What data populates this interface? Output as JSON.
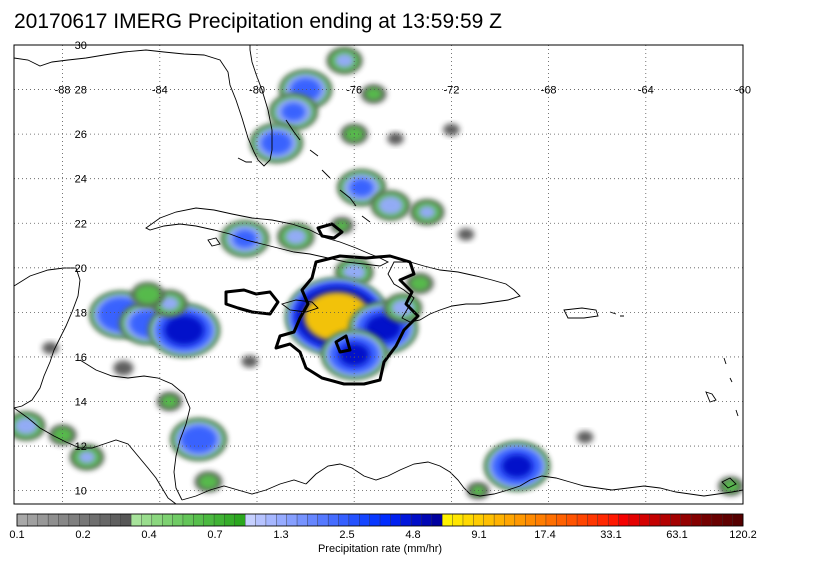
{
  "title": "20170617 IMERG Precipitation ending at 13:59:59 Z",
  "map": {
    "lon_range": [
      -90,
      -60
    ],
    "lat_range": [
      9.4,
      30
    ],
    "lon_ticks": [
      {
        "value": -88,
        "label": "-88"
      },
      {
        "value": -84,
        "label": "-84"
      },
      {
        "value": -80,
        "label": "-80"
      },
      {
        "value": -76,
        "label": "-76"
      },
      {
        "value": -72,
        "label": "-72"
      },
      {
        "value": -68,
        "label": "-68"
      },
      {
        "value": -64,
        "label": "-64"
      },
      {
        "value": -60,
        "label": "-60"
      }
    ],
    "lat_ticks": [
      {
        "value": 30,
        "label": "30"
      },
      {
        "value": 28,
        "label": "28"
      },
      {
        "value": 26,
        "label": "26"
      },
      {
        "value": 24,
        "label": "24"
      },
      {
        "value": 22,
        "label": "22"
      },
      {
        "value": 20,
        "label": "20"
      },
      {
        "value": 18,
        "label": "18"
      },
      {
        "value": 16,
        "label": "16"
      },
      {
        "value": 14,
        "label": "14"
      },
      {
        "value": 12,
        "label": "12"
      },
      {
        "value": 10,
        "label": "10"
      }
    ],
    "colors": {
      "coast": "#000000",
      "grid": "#555555",
      "contour": "#000000"
    },
    "precip_cells": [
      {
        "lon": -78.0,
        "lat": 28.0,
        "rate": 3.0
      },
      {
        "lon": -78.5,
        "lat": 27.0,
        "rate": 2.5
      },
      {
        "lon": -79.2,
        "lat": 25.6,
        "rate": 3.0
      },
      {
        "lon": -76.4,
        "lat": 29.3,
        "rate": 1.3
      },
      {
        "lon": -75.2,
        "lat": 27.8,
        "rate": 0.7
      },
      {
        "lon": -76.0,
        "lat": 26.0,
        "rate": 0.8
      },
      {
        "lon": -75.7,
        "lat": 23.6,
        "rate": 2.5
      },
      {
        "lon": -74.5,
        "lat": 22.8,
        "rate": 1.6
      },
      {
        "lon": -73.0,
        "lat": 22.5,
        "rate": 1.2
      },
      {
        "lon": -80.5,
        "lat": 21.3,
        "rate": 2.5
      },
      {
        "lon": -78.4,
        "lat": 21.4,
        "rate": 1.4
      },
      {
        "lon": -76.5,
        "lat": 21.9,
        "rate": 0.6
      },
      {
        "lon": -85.6,
        "lat": 17.9,
        "rate": 4.5
      },
      {
        "lon": -84.5,
        "lat": 17.5,
        "rate": 3.5
      },
      {
        "lon": -83.0,
        "lat": 17.2,
        "rate": 6.0
      },
      {
        "lon": -83.6,
        "lat": 18.4,
        "rate": 1.3
      },
      {
        "lon": -84.5,
        "lat": 18.8,
        "rate": 1.1
      },
      {
        "lon": -76.0,
        "lat": 19.8,
        "rate": 1.5
      },
      {
        "lon": -76.7,
        "lat": 17.8,
        "rate": 14.0
      },
      {
        "lon": -74.8,
        "lat": 17.3,
        "rate": 5.5
      },
      {
        "lon": -76.0,
        "lat": 16.1,
        "rate": 5.0
      },
      {
        "lon": -74.0,
        "lat": 18.2,
        "rate": 1.5
      },
      {
        "lon": -73.3,
        "lat": 19.3,
        "rate": 0.8
      },
      {
        "lon": -89.5,
        "lat": 12.9,
        "rate": 1.5
      },
      {
        "lon": -87.0,
        "lat": 11.5,
        "rate": 1.2
      },
      {
        "lon": -88.0,
        "lat": 12.5,
        "rate": 0.8
      },
      {
        "lon": -82.4,
        "lat": 12.3,
        "rate": 3.5
      },
      {
        "lon": -83.6,
        "lat": 14.0,
        "rate": 0.7
      },
      {
        "lon": -85.5,
        "lat": 15.5,
        "rate": 0.5
      },
      {
        "lon": -82.0,
        "lat": 10.4,
        "rate": 0.8
      },
      {
        "lon": -69.3,
        "lat": 11.1,
        "rate": 5.0
      },
      {
        "lon": -70.9,
        "lat": 10.0,
        "rate": 0.6
      },
      {
        "lon": -60.5,
        "lat": 10.2,
        "rate": 0.7
      },
      {
        "lon": -66.5,
        "lat": 12.4,
        "rate": 0.4
      },
      {
        "lon": -80.3,
        "lat": 15.8,
        "rate": 0.4
      },
      {
        "lon": -74.3,
        "lat": 25.8,
        "rate": 0.4
      },
      {
        "lon": -71.4,
        "lat": 21.5,
        "rate": 0.4
      },
      {
        "lon": -72.0,
        "lat": 26.2,
        "rate": 0.4
      },
      {
        "lon": -88.5,
        "lat": 16.4,
        "rate": 0.4
      }
    ]
  },
  "colorbar": {
    "title": "Precipitation rate (mm/hr)",
    "colors": [
      "#a8a8a8",
      "#a0a0a0",
      "#989898",
      "#8f8f8f",
      "#878787",
      "#7f7f7f",
      "#777777",
      "#6f6f6f",
      "#676767",
      "#5f5f5f",
      "#575757",
      "#a7e39b",
      "#99dd8d",
      "#8bd77f",
      "#7dd171",
      "#70cb65",
      "#63c558",
      "#57bf4c",
      "#4bb940",
      "#40b334",
      "#35ad29",
      "#2ba71f",
      "#c6d0ff",
      "#b6c3ff",
      "#a6b7ff",
      "#96abff",
      "#869fff",
      "#7693ff",
      "#6686ff",
      "#5579ff",
      "#456cff",
      "#355fff",
      "#2552ff",
      "#1545ff",
      "#0838ff",
      "#002cff",
      "#0020f0",
      "#0016dc",
      "#000dc8",
      "#0006b4",
      "#0000a0",
      "#fff200",
      "#ffe600",
      "#ffd900",
      "#ffcc00",
      "#ffbf00",
      "#ffb200",
      "#ffa500",
      "#ff9800",
      "#ff8a00",
      "#ff7d00",
      "#ff6f00",
      "#ff6100",
      "#ff5300",
      "#ff4500",
      "#ff3600",
      "#ff2700",
      "#ff1800",
      "#f40000",
      "#e40000",
      "#d40000",
      "#c40000",
      "#b40000",
      "#a40000",
      "#940000",
      "#840000",
      "#740000",
      "#690000",
      "#5f0000",
      "#550000"
    ],
    "labels": [
      "0.1",
      "0.2",
      "0.4",
      "0.7",
      "1.3",
      "2.5",
      "4.8",
      "9.1",
      "17.4",
      "33.1",
      "63.1",
      "120.2"
    ],
    "label_values": [
      0.1,
      0.2,
      0.4,
      0.7,
      1.3,
      2.5,
      4.8,
      9.1,
      17.4,
      33.1,
      63.1,
      120.2
    ]
  }
}
